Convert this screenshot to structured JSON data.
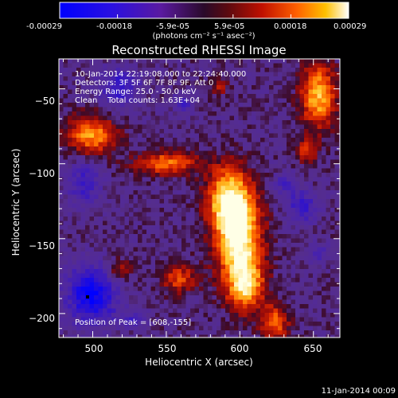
{
  "colorbar": {
    "ticks": [
      "-0.00029",
      "-0.00018",
      "-5.9e-05",
      "5.9e-05",
      "0.00018",
      "0.00029"
    ],
    "unit": "(photons cm⁻² s⁻¹ asec⁻²)",
    "range": [
      -0.00029,
      0.00029
    ]
  },
  "chart_data": {
    "type": "heatmap",
    "title": "Reconstructed RHESSI Image",
    "xlabel": "Heliocentric X (arcsec)",
    "ylabel": "Heliocentric Y (arcsec)",
    "xlim": [
      477,
      668
    ],
    "ylim": [
      -216,
      -30
    ],
    "xticks": [
      500,
      550,
      600,
      650
    ],
    "yticks": [
      -50,
      -100,
      -150,
      -200
    ],
    "colormap": "blue-purple-red-yellow-white (diverging, RHESSI)",
    "annotations": [
      "10-Jan-2014 22:19:08.000 to 22:24:40.000",
      "Detectors: 3F 5F 6F 7F 8F 9F, Att 0",
      "Energy Range: 25.0 - 50.0 keV",
      "Clean    Total counts: 1.63E+04"
    ],
    "peak_label": "Position of Peak = [608,-155]",
    "peak_position": [
      608,
      -155
    ],
    "timestamp": "11-Jan-2014 00:09"
  }
}
